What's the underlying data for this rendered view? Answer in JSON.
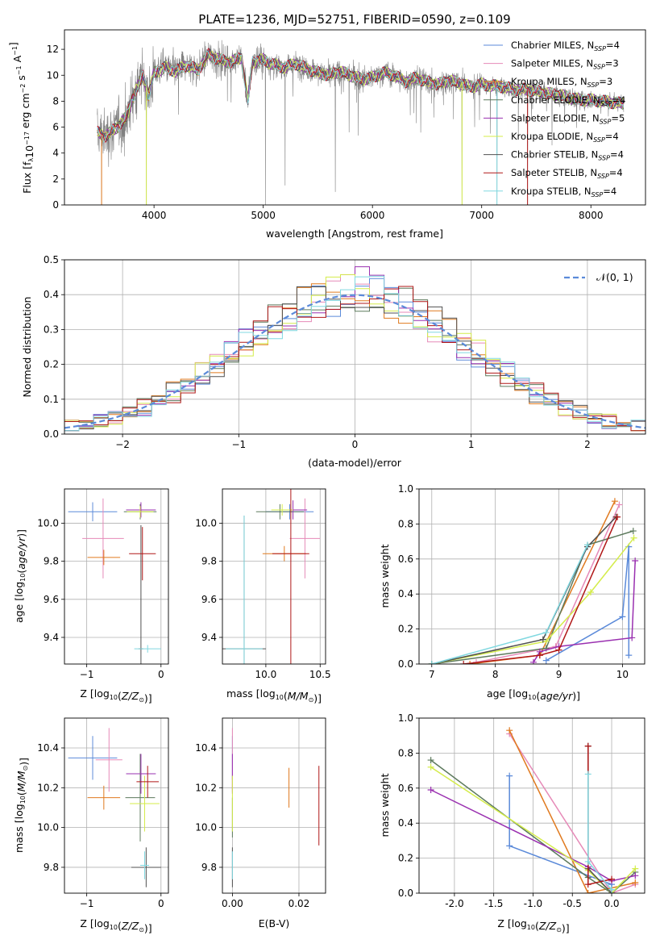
{
  "title": "PLATE=1236, MJD=52751, FIBERID=0590, z=0.109",
  "models": [
    {
      "key": "cm",
      "label": "Chabrier MILES, N$_{SSP}$=4",
      "pre": "Chabrier MILES, N",
      "post": "=4",
      "color": "#5b8ad9"
    },
    {
      "key": "sm",
      "label": "Salpeter MILES, N$_{SSP}$=3",
      "pre": "Salpeter MILES, N",
      "post": "=3",
      "color": "#e68ab8"
    },
    {
      "key": "km",
      "label": "Kroupa MILES, N$_{SSP}$=3",
      "pre": "Kroupa MILES, N",
      "post": "=3",
      "color": "#e07a1f"
    },
    {
      "key": "ce",
      "label": "Chabrier ELODIE, N$_{SSP}$=4",
      "pre": "Chabrier ELODIE, N",
      "post": "=4",
      "color": "#5d7a5d"
    },
    {
      "key": "se",
      "label": "Salpeter ELODIE, N$_{SSP}$=5",
      "pre": "Salpeter ELODIE, N",
      "post": "=5",
      "color": "#9a30b0"
    },
    {
      "key": "ke",
      "label": "Kroupa ELODIE, N$_{SSP}$=4",
      "pre": "Kroupa ELODIE, N",
      "post": "=4",
      "color": "#d4ec4a"
    },
    {
      "key": "cs",
      "label": "Chabrier STELIB, N$_{SSP}$=4",
      "pre": "Chabrier STELIB, N",
      "post": "=4",
      "color": "#505050"
    },
    {
      "key": "ss",
      "label": "Salpeter STELIB, N$_{SSP}$=4",
      "pre": "Salpeter STELIB, N",
      "post": "=4",
      "color": "#b01818"
    },
    {
      "key": "ks",
      "label": "Kroupa STELIB, N$_{SSP}$=4",
      "pre": "Kroupa STELIB, N",
      "post": "=4",
      "color": "#80d8e0"
    }
  ],
  "subscript_ssp": "SSP",
  "chart_data": [
    {
      "id": "spectrum",
      "type": "line",
      "xlabel": "wavelength [Angstrom, rest frame]",
      "ylabel": "Flux [f$_\\lambda$10$^{-17}$ erg cm$^{-2}$ s$^{-1}$ A$^{-1}$]",
      "xlim": [
        3180,
        8500
      ],
      "ylim": [
        0,
        13.5
      ],
      "xticks": [
        4000,
        5000,
        6000,
        7000,
        8000
      ],
      "yticks": [
        0,
        2,
        4,
        6,
        8,
        10,
        12
      ],
      "legend_position": "right",
      "grid": false,
      "data_series": {
        "name": "data",
        "color": "#808080",
        "x_range": [
          3480,
          8300
        ]
      },
      "model_continuum": {
        "x": [
          3480,
          3550,
          3650,
          3750,
          3800,
          3900,
          3950,
          4000,
          4100,
          4200,
          4300,
          4400,
          4500,
          4600,
          4700,
          4800,
          4860,
          4900,
          5000,
          5100,
          5200,
          5300,
          5400,
          5500,
          5600,
          5700,
          5800,
          5900,
          6000,
          6100,
          6200,
          6300,
          6400,
          6500,
          6600,
          6700,
          6800,
          6900,
          7000,
          7100,
          7200,
          7300,
          7400,
          7500,
          7600,
          7700,
          7800,
          7900,
          8000,
          8100,
          8200,
          8300
        ],
        "y": [
          5.6,
          5.3,
          5.9,
          6.8,
          8.2,
          10.0,
          8.4,
          10.2,
          10.6,
          10.3,
          10.8,
          10.4,
          11.6,
          11.2,
          11.0,
          11.4,
          8.0,
          11.0,
          11.2,
          10.8,
          10.6,
          10.9,
          10.5,
          10.2,
          10.0,
          10.3,
          10.0,
          9.7,
          9.8,
          10.2,
          10.0,
          9.5,
          9.8,
          9.5,
          9.3,
          9.6,
          9.4,
          9.1,
          9.3,
          9.2,
          9.1,
          8.9,
          8.9,
          8.8,
          8.6,
          8.5,
          8.3,
          8.1,
          8.1,
          8.0,
          7.9,
          7.8
        ]
      },
      "absorption_dips": [
        {
          "x": 3520,
          "depth_to": 0
        },
        {
          "x": 3930,
          "depth_to": 0
        },
        {
          "x": 4860,
          "depth_to": 7.5
        },
        {
          "x": 5020,
          "depth_to": 0
        },
        {
          "x": 5200,
          "depth_to": 1.5
        },
        {
          "x": 5660,
          "depth_to": 1.0
        },
        {
          "x": 6820,
          "depth_to": 0
        },
        {
          "x": 7140,
          "depth_to": 0
        },
        {
          "x": 7420,
          "depth_to": 0
        }
      ]
    },
    {
      "id": "residual-histogram",
      "type": "histogram",
      "xlabel": "(data-model)/error",
      "ylabel": "Normed distribution",
      "xlim": [
        -2.5,
        2.5
      ],
      "ylim": [
        0,
        0.5
      ],
      "xticks": [
        -2,
        -1,
        0,
        1,
        2
      ],
      "yticks": [
        0.0,
        0.1,
        0.2,
        0.3,
        0.4,
        0.5
      ],
      "grid": true,
      "bin_width": 0.125,
      "reference_curve": {
        "name": "$\\mathcal{N}(0, 1)$",
        "label": "𝒩(0, 1)",
        "color": "#5b8ad9",
        "style": "dashed"
      }
    },
    {
      "id": "age-vs-Z",
      "type": "errorbar",
      "xlabel": "Z [log$_{10}$(Z/Z$_\\odot$)]",
      "ylabel": "age  [log$_{10}$(age/yr)]",
      "xlim": [
        -1.3,
        0.1
      ],
      "ylim": [
        9.26,
        10.18
      ],
      "xticks": [
        -1,
        0
      ],
      "yticks": [
        9.4,
        9.6,
        9.8,
        10.0
      ],
      "grid": true,
      "points": [
        {
          "model": "cm",
          "x": -0.92,
          "y": 10.06,
          "xerr": 0.33,
          "yerr": 0.05
        },
        {
          "model": "sm",
          "x": -0.78,
          "y": 9.92,
          "xerr": 0.28,
          "yerr": 0.21
        },
        {
          "model": "km",
          "x": -0.77,
          "y": 9.82,
          "xerr": 0.22,
          "yerr": 0.04
        },
        {
          "model": "ce",
          "x": -0.28,
          "y": 10.06,
          "xerr": 0.22,
          "yerr": 0.04
        },
        {
          "model": "se",
          "x": -0.27,
          "y": 10.07,
          "xerr": 0.2,
          "yerr": 0.04
        },
        {
          "model": "ke",
          "x": -0.28,
          "y": 10.06,
          "xerr": 0.18,
          "yerr": 0.03
        },
        {
          "model": "cs",
          "x": -0.27,
          "y": 9.34,
          "xerr": 0.03,
          "yerr": 0.65
        },
        {
          "model": "ss",
          "x": -0.25,
          "y": 9.84,
          "xerr": 0.18,
          "yerr": 0.14
        },
        {
          "model": "ks",
          "x": -0.18,
          "y": 9.34,
          "xerr": 0.18,
          "yerr": 0.02
        }
      ]
    },
    {
      "id": "age-vs-mass",
      "type": "errorbar",
      "xlabel": "mass [log$_{10}$(M/M$_\\odot$)]",
      "ylabel": "",
      "xlim": [
        9.6,
        10.55
      ],
      "ylim": [
        9.26,
        10.18
      ],
      "xticks": [
        10.0,
        10.5
      ],
      "yticks": [
        9.4,
        9.6,
        9.8,
        10.0
      ],
      "grid": true,
      "points": [
        {
          "model": "cm",
          "x": 10.22,
          "y": 10.06,
          "xerr": 0.22,
          "yerr": 0.04
        },
        {
          "model": "sm",
          "x": 10.36,
          "y": 9.92,
          "xerr": 0.14,
          "yerr": 0.21
        },
        {
          "model": "km",
          "x": 10.17,
          "y": 9.84,
          "xerr": 0.2,
          "yerr": 0.04
        },
        {
          "model": "ce",
          "x": 10.13,
          "y": 10.06,
          "xerr": 0.22,
          "yerr": 0.04
        },
        {
          "model": "se",
          "x": 10.25,
          "y": 10.07,
          "xerr": 0.13,
          "yerr": 0.05
        },
        {
          "model": "ke",
          "x": 10.15,
          "y": 10.07,
          "xerr": 0.1,
          "yerr": 0.03
        },
        {
          "model": "cs",
          "x": 9.8,
          "y": 9.34,
          "xerr": 0.2,
          "yerr": 0.7
        },
        {
          "model": "ss",
          "x": 10.23,
          "y": 9.84,
          "xerr": 0.17,
          "yerr": 0.6
        },
        {
          "model": "ks",
          "x": 9.8,
          "y": 9.34,
          "xerr": 0.17,
          "yerr": 0.7
        }
      ]
    },
    {
      "id": "mass-weight-vs-age",
      "type": "line",
      "xlabel": "age  [log$_{10}$(age/yr)]",
      "ylabel": "mass weight",
      "xlim": [
        6.8,
        10.35
      ],
      "ylim": [
        0,
        1
      ],
      "xticks": [
        7,
        8,
        9,
        10
      ],
      "yticks": [
        0.0,
        0.2,
        0.4,
        0.6,
        0.8,
        1.0
      ],
      "grid": true,
      "series": [
        {
          "model": "cm",
          "x": [
            8.8,
            10.0,
            10.1,
            10.1
          ],
          "y": [
            0.02,
            0.27,
            0.67,
            0.05
          ]
        },
        {
          "model": "sm",
          "x": [
            7.7,
            8.95,
            9.95
          ],
          "y": [
            0.01,
            0.1,
            0.91
          ]
        },
        {
          "model": "km",
          "x": [
            7.6,
            8.7,
            9.88
          ],
          "y": [
            0.0,
            0.05,
            0.93
          ]
        },
        {
          "model": "ce",
          "x": [
            7.0,
            8.8,
            9.45,
            10.17
          ],
          "y": [
            0.0,
            0.09,
            0.68,
            0.76
          ]
        },
        {
          "model": "se",
          "x": [
            8.6,
            8.7,
            9.0,
            10.15,
            10.2
          ],
          "y": [
            0.01,
            0.07,
            0.1,
            0.15,
            0.59
          ]
        },
        {
          "model": "ke",
          "x": [
            7.0,
            8.8,
            9.5,
            10.18
          ],
          "y": [
            0.0,
            0.13,
            0.41,
            0.72
          ]
        },
        {
          "model": "cs",
          "x": [
            7.0,
            8.75,
            9.45,
            9.9
          ],
          "y": [
            0.0,
            0.14,
            0.67,
            0.84
          ]
        },
        {
          "model": "ss",
          "x": [
            7.5,
            8.7,
            9.0,
            9.92
          ],
          "y": [
            0.0,
            0.05,
            0.08,
            0.84
          ]
        },
        {
          "model": "ks",
          "x": [
            7.0,
            8.8,
            9.45
          ],
          "y": [
            0.0,
            0.18,
            0.68
          ]
        }
      ]
    },
    {
      "id": "mass-vs-Z",
      "type": "errorbar",
      "xlabel": "Z [log$_{10}$(Z/Z$_\\odot$)]",
      "ylabel": "mass [log$_{10}$(M/M$_\\odot$)]",
      "xlim": [
        -1.3,
        0.1
      ],
      "ylim": [
        9.67,
        10.55
      ],
      "xticks": [
        -1,
        0
      ],
      "yticks": [
        9.8,
        10.0,
        10.2,
        10.4
      ],
      "grid": true,
      "points": [
        {
          "model": "cm",
          "x": -0.92,
          "y": 10.35,
          "xerr": 0.33,
          "yerr": 0.11
        },
        {
          "model": "sm",
          "x": -0.7,
          "y": 10.34,
          "xerr": 0.18,
          "yerr": 0.16
        },
        {
          "model": "km",
          "x": -0.77,
          "y": 10.15,
          "xerr": 0.22,
          "yerr": 0.06
        },
        {
          "model": "ce",
          "x": -0.28,
          "y": 10.15,
          "xerr": 0.2,
          "yerr": 0.22
        },
        {
          "model": "se",
          "x": -0.27,
          "y": 10.27,
          "xerr": 0.2,
          "yerr": 0.1
        },
        {
          "model": "ke",
          "x": -0.22,
          "y": 10.12,
          "xerr": 0.2,
          "yerr": 0.14
        },
        {
          "model": "cs",
          "x": -0.2,
          "y": 9.8,
          "xerr": 0.2,
          "yerr": 0.1
        },
        {
          "model": "ss",
          "x": -0.18,
          "y": 10.23,
          "xerr": 0.15,
          "yerr": 0.08
        },
        {
          "model": "ks",
          "x": -0.22,
          "y": 9.81,
          "xerr": 0.06,
          "yerr": 0.07
        }
      ]
    },
    {
      "id": "mass-vs-EBV",
      "type": "errorbar",
      "xlabel": "E(B-V)",
      "ylabel": "",
      "xlim": [
        -0.003,
        0.028
      ],
      "ylim": [
        9.67,
        10.55
      ],
      "xticks": [
        0.0,
        0.02
      ],
      "yticks": [
        9.8,
        10.0,
        10.2,
        10.4
      ],
      "grid": true,
      "points": [
        {
          "model": "cm",
          "x": 0.0,
          "y": 10.35,
          "xerr": 0,
          "yerr": 0.11
        },
        {
          "model": "sm",
          "x": 0.0,
          "y": 10.34,
          "xerr": 0,
          "yerr": 0.16
        },
        {
          "model": "km",
          "x": 0.017,
          "y": 10.2,
          "xerr": 0,
          "yerr": 0.1
        },
        {
          "model": "ce",
          "x": 0.0,
          "y": 10.05,
          "xerr": 0,
          "yerr": 0.1
        },
        {
          "model": "se",
          "x": 0.0,
          "y": 10.27,
          "xerr": 0,
          "yerr": 0.1
        },
        {
          "model": "ke",
          "x": 0.0,
          "y": 10.12,
          "xerr": 0,
          "yerr": 0.14
        },
        {
          "model": "cs",
          "x": 0.0,
          "y": 9.8,
          "xerr": 0,
          "yerr": 0.1
        },
        {
          "model": "ss",
          "x": 0.026,
          "y": 10.11,
          "xerr": 0,
          "yerr": 0.2
        },
        {
          "model": "ks",
          "x": 0.0,
          "y": 9.81,
          "xerr": 0,
          "yerr": 0.07
        }
      ]
    },
    {
      "id": "mass-weight-vs-Z",
      "type": "line",
      "xlabel": "Z [log$_{10}$(Z/Z$_\\odot$)]",
      "ylabel": "mass weight",
      "xlim": [
        -2.45,
        0.42
      ],
      "ylim": [
        0,
        1
      ],
      "xticks": [
        -2.0,
        -1.5,
        -1.0,
        -0.5,
        0.0
      ],
      "yticks": [
        0.0,
        0.2,
        0.4,
        0.6,
        0.8,
        1.0
      ],
      "grid": true,
      "series": [
        {
          "model": "cm",
          "x": [
            -1.3,
            -1.3,
            0.0,
            0.0
          ],
          "y": [
            0.67,
            0.27,
            0.05,
            0.02
          ]
        },
        {
          "model": "sm",
          "x": [
            -1.3,
            0.0,
            0.3
          ],
          "y": [
            0.91,
            0.0,
            0.05
          ]
        },
        {
          "model": "km",
          "x": [
            -1.3,
            -0.3,
            0.3
          ],
          "y": [
            0.93,
            0.0,
            0.06
          ]
        },
        {
          "model": "ce",
          "x": [
            -2.3,
            -0.3,
            0.0,
            0.3
          ],
          "y": [
            0.76,
            0.09,
            0.0,
            0.12
          ]
        },
        {
          "model": "se",
          "x": [
            -2.3,
            -0.3,
            0.0,
            0.3
          ],
          "y": [
            0.59,
            0.15,
            0.07,
            0.1
          ]
        },
        {
          "model": "ke",
          "x": [
            -2.3,
            -0.3,
            0.0,
            0.3
          ],
          "y": [
            0.72,
            0.13,
            0.0,
            0.14
          ]
        },
        {
          "model": "cs",
          "x": [
            -0.3,
            -0.3,
            0.0
          ],
          "y": [
            0.84,
            0.14,
            0.0
          ]
        },
        {
          "model": "ss",
          "x": [
            -0.3,
            -0.3,
            0.0
          ],
          "y": [
            0.84,
            0.05,
            0.08
          ]
        },
        {
          "model": "ks",
          "x": [
            -0.3,
            -0.3,
            0.0
          ],
          "y": [
            0.68,
            0.18,
            0.02
          ]
        }
      ]
    }
  ]
}
